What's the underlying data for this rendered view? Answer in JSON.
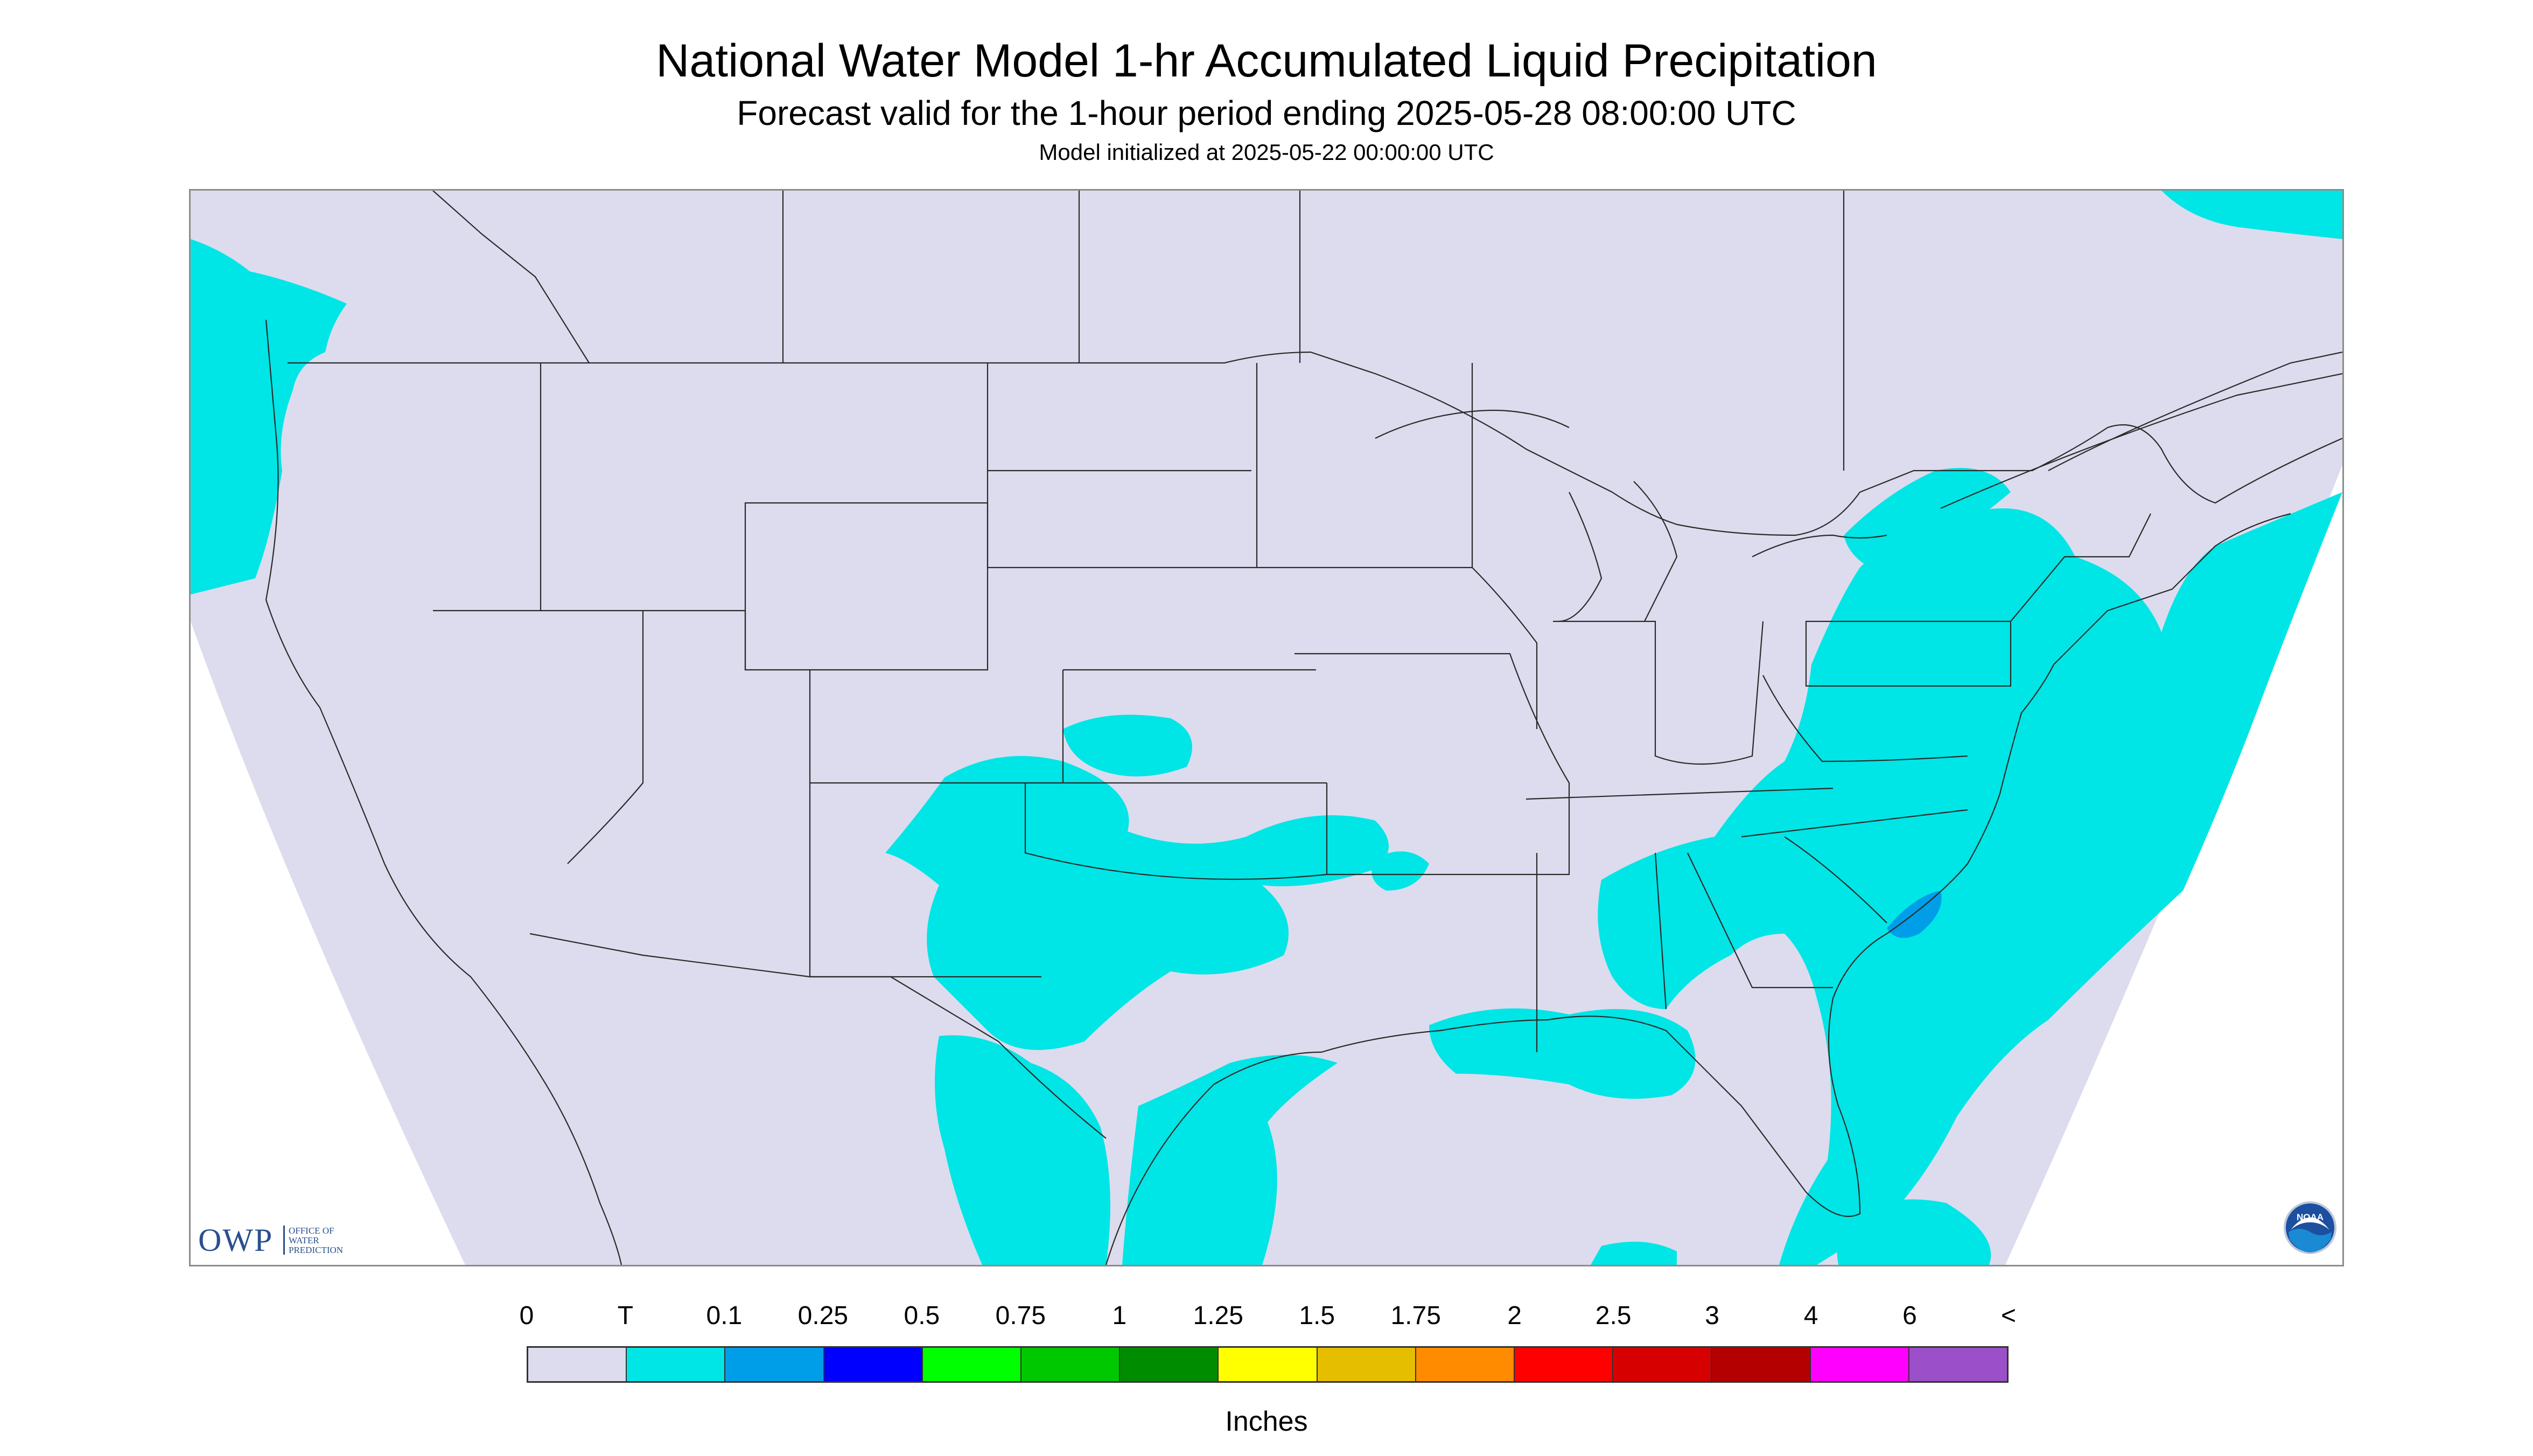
{
  "header": {
    "title": "National Water Model 1-hr Accumulated Liquid Precipitation",
    "subtitle": "Forecast valid for the 1-hour period ending 2025-05-28 08:00:00 UTC",
    "init": "Model initialized at 2025-05-22 00:00:00 UTC"
  },
  "map": {
    "background_color": "#dcdcee",
    "outside_color": "#ffffff",
    "precip_color": "#00e5e5",
    "heavier_precip_color": "#009ee8",
    "boundary_color": "#2a2a2a",
    "precip_regions": [
      "Pacific Northwest coast",
      "Southern Plains",
      "Texas and Gulf Coast",
      "Gulf of Mexico",
      "Southeast",
      "Mid-Atlantic",
      "Northeast",
      "Western Atlantic"
    ]
  },
  "logos": {
    "owp_letters": "OWP",
    "owp_line1": "OFFICE OF",
    "owp_line2": "WATER",
    "owp_line3": "PREDICTION",
    "noaa_text": "NOAA",
    "noaa_icon": "noaa-icon"
  },
  "legend": {
    "units": "Inches",
    "labels": [
      "0",
      "T",
      "0.1",
      "0.25",
      "0.5",
      "0.75",
      "1",
      "1.25",
      "1.5",
      "1.75",
      "2",
      "2.5",
      "3",
      "4",
      "6",
      "<"
    ],
    "colors": [
      "#dcdcee",
      "#00e5e5",
      "#009ee8",
      "#0000ff",
      "#00ff00",
      "#00c800",
      "#008c00",
      "#ffff00",
      "#e6be00",
      "#ff8c00",
      "#ff0000",
      "#d70000",
      "#b40000",
      "#ff00ff",
      "#9b4fc8"
    ]
  }
}
